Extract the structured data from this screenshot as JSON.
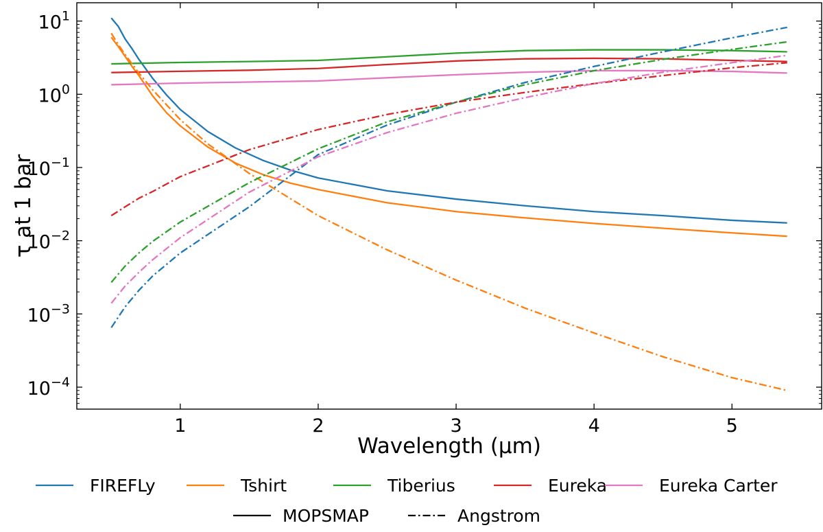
{
  "chart_data": {
    "type": "line",
    "title": "",
    "xlabel": "Wavelength (μm)",
    "ylabel": "τ at 1 bar",
    "xlim": [
      0.25,
      5.65
    ],
    "ylim_log10": [
      -4.3,
      1.25
    ],
    "yscale": "log",
    "x_ticks": [
      1,
      2,
      3,
      4,
      5
    ],
    "x_tick_labels": [
      "1",
      "2",
      "3",
      "4",
      "5"
    ],
    "y_tick_exponents": [
      -4,
      -3,
      -2,
      -1,
      0,
      1
    ],
    "y_tick_labels": [
      "10",
      "10",
      "10",
      "10",
      "10",
      "10"
    ],
    "y_tick_label_exponents": [
      "−4",
      "−3",
      "−2",
      "−1",
      "0",
      "1"
    ],
    "colors": {
      "FIREFLy": "#1f77b4",
      "Tshirt": "#ff7f0e",
      "Tiberius": "#2ca02c",
      "Eureka": "#d62728",
      "Eureka Carter": "#e377c2"
    },
    "legend_row1": [
      "FIREFLy",
      "Tshirt",
      "Tiberius",
      "Eureka",
      "Eureka Carter"
    ],
    "legend_row2": [
      {
        "label": "MOPSMAP",
        "style": "solid"
      },
      {
        "label": "Angstrom",
        "style": "dashdot"
      }
    ],
    "series": [
      {
        "name": "FIREFLy",
        "method": "MOPSMAP",
        "style": "solid",
        "x": [
          0.5,
          0.55,
          0.6,
          0.65,
          0.7,
          0.8,
          0.9,
          1.0,
          1.2,
          1.4,
          1.6,
          1.8,
          2.0,
          2.5,
          3.0,
          3.5,
          4.0,
          4.5,
          5.0,
          5.4
        ],
        "y": [
          11,
          8.5,
          5.7,
          4.2,
          3.0,
          1.65,
          0.98,
          0.62,
          0.31,
          0.185,
          0.125,
          0.092,
          0.072,
          0.048,
          0.037,
          0.03,
          0.025,
          0.022,
          0.019,
          0.0175
        ]
      },
      {
        "name": "Tshirt",
        "method": "MOPSMAP",
        "style": "solid",
        "x": [
          0.5,
          0.55,
          0.6,
          0.65,
          0.7,
          0.8,
          0.9,
          1.0,
          1.2,
          1.4,
          1.6,
          1.8,
          2.0,
          2.5,
          3.0,
          3.5,
          4.0,
          4.5,
          5.0,
          5.4
        ],
        "y": [
          6.0,
          4.5,
          3.3,
          2.4,
          1.8,
          0.95,
          0.56,
          0.37,
          0.19,
          0.115,
          0.08,
          0.061,
          0.05,
          0.033,
          0.025,
          0.0205,
          0.0172,
          0.0148,
          0.0128,
          0.0115
        ]
      },
      {
        "name": "Tiberius",
        "method": "MOPSMAP",
        "style": "solid",
        "x": [
          0.5,
          1.0,
          1.5,
          2.0,
          2.5,
          3.0,
          3.5,
          4.0,
          4.5,
          5.0,
          5.4
        ],
        "y": [
          2.6,
          2.72,
          2.8,
          2.9,
          3.25,
          3.65,
          3.95,
          4.05,
          4.05,
          3.95,
          3.8
        ]
      },
      {
        "name": "Eureka",
        "method": "MOPSMAP",
        "style": "solid",
        "x": [
          0.5,
          1.0,
          1.5,
          2.0,
          2.5,
          3.0,
          3.5,
          4.0,
          4.5,
          5.0,
          5.4
        ],
        "y": [
          1.98,
          2.06,
          2.13,
          2.25,
          2.55,
          2.85,
          3.05,
          3.1,
          3.05,
          2.9,
          2.8
        ]
      },
      {
        "name": "Eureka Carter",
        "method": "MOPSMAP",
        "style": "solid",
        "x": [
          0.5,
          1.0,
          1.5,
          2.0,
          2.5,
          3.0,
          3.5,
          4.0,
          4.5,
          5.0,
          5.4
        ],
        "y": [
          1.35,
          1.42,
          1.47,
          1.52,
          1.68,
          1.85,
          2.0,
          2.1,
          2.1,
          2.05,
          1.95
        ]
      },
      {
        "name": "FIREFLy",
        "method": "Angstrom",
        "style": "dashdot",
        "x": [
          0.5,
          0.6,
          0.7,
          0.8,
          1.0,
          1.5,
          2.0,
          2.5,
          3.0,
          3.5,
          4.0,
          4.5,
          5.0,
          5.4
        ],
        "y": [
          0.00065,
          0.00125,
          0.0021,
          0.0033,
          0.0068,
          0.029,
          0.15,
          0.38,
          0.78,
          1.45,
          2.4,
          3.8,
          5.9,
          8.2
        ]
      },
      {
        "name": "Tshirt",
        "method": "Angstrom",
        "style": "dashdot",
        "x": [
          0.5,
          0.55,
          0.6,
          0.7,
          0.8,
          1.0,
          1.2,
          1.5,
          2.0,
          2.5,
          3.0,
          3.5,
          4.0,
          4.5,
          5.0,
          5.4
        ],
        "y": [
          6.8,
          4.8,
          3.5,
          1.95,
          1.15,
          0.45,
          0.21,
          0.083,
          0.022,
          0.0075,
          0.0029,
          0.0012,
          0.00055,
          0.00026,
          0.000135,
          9e-05
        ]
      },
      {
        "name": "Tiberius",
        "method": "Angstrom",
        "style": "dashdot",
        "x": [
          0.5,
          0.6,
          0.7,
          0.8,
          1.0,
          1.5,
          2.0,
          2.5,
          3.0,
          3.5,
          4.0,
          4.5,
          5.0,
          5.4
        ],
        "y": [
          0.0027,
          0.0045,
          0.0068,
          0.0098,
          0.018,
          0.062,
          0.18,
          0.42,
          0.78,
          1.35,
          2.1,
          3.0,
          4.1,
          5.2
        ]
      },
      {
        "name": "Eureka",
        "method": "Angstrom",
        "style": "dashdot",
        "x": [
          0.5,
          0.6,
          0.7,
          0.8,
          1.0,
          1.5,
          2.0,
          2.5,
          3.0,
          3.5,
          4.0,
          4.5,
          5.0,
          5.4
        ],
        "y": [
          0.022,
          0.029,
          0.038,
          0.047,
          0.075,
          0.175,
          0.33,
          0.53,
          0.78,
          1.06,
          1.4,
          1.8,
          2.3,
          2.7
        ]
      },
      {
        "name": "Eureka Carter",
        "method": "Angstrom",
        "style": "dashdot",
        "x": [
          0.5,
          0.6,
          0.7,
          0.8,
          1.0,
          1.5,
          2.0,
          2.5,
          3.0,
          3.5,
          4.0,
          4.5,
          5.0,
          5.4
        ],
        "y": [
          0.0014,
          0.0024,
          0.0037,
          0.0055,
          0.011,
          0.046,
          0.14,
          0.3,
          0.55,
          0.9,
          1.4,
          2.0,
          2.7,
          3.4
        ]
      }
    ]
  }
}
